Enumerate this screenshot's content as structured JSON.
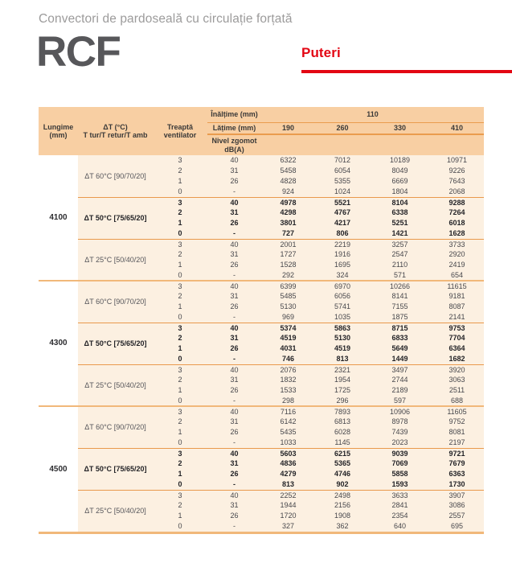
{
  "page": {
    "subtitle": "Convectori de pardoseală cu circulație forțată",
    "product": "RCF",
    "section": "Puteri"
  },
  "colors": {
    "accent_red": "#e30613",
    "table_header_bg": "#f8cfa3",
    "table_body_bg": "#fcf0e1",
    "thin_rule_orange": "#e9994c",
    "group_rule_orange": "#f1b87a",
    "product_gray": "#57575a",
    "subtitle_gray": "#9c9b9b"
  },
  "table": {
    "header": {
      "inaltime_label": "Înălțime (mm)",
      "inaltime_value": "110",
      "latime_label": "Lățime (mm)",
      "widths": [
        "190",
        "260",
        "330",
        "410"
      ],
      "lungime_line1": "Lungime",
      "lungime_line2": "(mm)",
      "dt_line1": "ΔT (°C)",
      "dt_line2": "T tur/T retur/T amb",
      "treapta_line1": "Treaptă",
      "treapta_line2": "ventilator",
      "nivel_line1": "Nivel zgomot",
      "nivel_line2": "dB(A)"
    },
    "groups": [
      {
        "length": "4100",
        "dt_blocks": [
          {
            "label": "ΔT 60°C [90/70/20]",
            "bold": false,
            "rows": [
              {
                "step": "3",
                "noise": "40",
                "values": [
                  "6322",
                  "7012",
                  "10189",
                  "10971"
                ]
              },
              {
                "step": "2",
                "noise": "31",
                "values": [
                  "5458",
                  "6054",
                  "8049",
                  "9226"
                ]
              },
              {
                "step": "1",
                "noise": "26",
                "values": [
                  "4828",
                  "5355",
                  "6669",
                  "7643"
                ]
              },
              {
                "step": "0",
                "noise": "-",
                "values": [
                  "924",
                  "1024",
                  "1804",
                  "2068"
                ]
              }
            ]
          },
          {
            "label": "ΔT 50°C [75/65/20]",
            "bold": true,
            "rows": [
              {
                "step": "3",
                "noise": "40",
                "values": [
                  "4978",
                  "5521",
                  "8104",
                  "9288"
                ]
              },
              {
                "step": "2",
                "noise": "31",
                "values": [
                  "4298",
                  "4767",
                  "6338",
                  "7264"
                ]
              },
              {
                "step": "1",
                "noise": "26",
                "values": [
                  "3801",
                  "4217",
                  "5251",
                  "6018"
                ]
              },
              {
                "step": "0",
                "noise": "-",
                "values": [
                  "727",
                  "806",
                  "1421",
                  "1628"
                ]
              }
            ]
          },
          {
            "label": "ΔT 25°C [50/40/20]",
            "bold": false,
            "rows": [
              {
                "step": "3",
                "noise": "40",
                "values": [
                  "2001",
                  "2219",
                  "3257",
                  "3733"
                ]
              },
              {
                "step": "2",
                "noise": "31",
                "values": [
                  "1727",
                  "1916",
                  "2547",
                  "2920"
                ]
              },
              {
                "step": "1",
                "noise": "26",
                "values": [
                  "1528",
                  "1695",
                  "2110",
                  "2419"
                ]
              },
              {
                "step": "0",
                "noise": "-",
                "values": [
                  "292",
                  "324",
                  "571",
                  "654"
                ]
              }
            ]
          }
        ]
      },
      {
        "length": "4300",
        "dt_blocks": [
          {
            "label": "ΔT 60°C [90/70/20]",
            "bold": false,
            "rows": [
              {
                "step": "3",
                "noise": "40",
                "values": [
                  "6399",
                  "6970",
                  "10266",
                  "11615"
                ]
              },
              {
                "step": "2",
                "noise": "31",
                "values": [
                  "5485",
                  "6056",
                  "8141",
                  "9181"
                ]
              },
              {
                "step": "1",
                "noise": "26",
                "values": [
                  "5130",
                  "5741",
                  "7155",
                  "8087"
                ]
              },
              {
                "step": "0",
                "noise": "-",
                "values": [
                  "969",
                  "1035",
                  "1875",
                  "2141"
                ]
              }
            ]
          },
          {
            "label": "ΔT 50°C [75/65/20]",
            "bold": true,
            "rows": [
              {
                "step": "3",
                "noise": "40",
                "values": [
                  "5374",
                  "5863",
                  "8715",
                  "9753"
                ]
              },
              {
                "step": "2",
                "noise": "31",
                "values": [
                  "4519",
                  "5130",
                  "6833",
                  "7704"
                ]
              },
              {
                "step": "1",
                "noise": "26",
                "values": [
                  "4031",
                  "4519",
                  "5649",
                  "6364"
                ]
              },
              {
                "step": "0",
                "noise": "-",
                "values": [
                  "746",
                  "813",
                  "1449",
                  "1682"
                ]
              }
            ]
          },
          {
            "label": "ΔT 25°C [50/40/20]",
            "bold": false,
            "rows": [
              {
                "step": "3",
                "noise": "40",
                "values": [
                  "2076",
                  "2321",
                  "3497",
                  "3920"
                ]
              },
              {
                "step": "2",
                "noise": "31",
                "values": [
                  "1832",
                  "1954",
                  "2744",
                  "3063"
                ]
              },
              {
                "step": "1",
                "noise": "26",
                "values": [
                  "1533",
                  "1725",
                  "2189",
                  "2511"
                ]
              },
              {
                "step": "0",
                "noise": "-",
                "values": [
                  "298",
                  "296",
                  "597",
                  "688"
                ]
              }
            ]
          }
        ]
      },
      {
        "length": "4500",
        "dt_blocks": [
          {
            "label": "ΔT 60°C [90/70/20]",
            "bold": false,
            "rows": [
              {
                "step": "3",
                "noise": "40",
                "values": [
                  "7116",
                  "7893",
                  "10906",
                  "11605"
                ]
              },
              {
                "step": "2",
                "noise": "31",
                "values": [
                  "6142",
                  "6813",
                  "8978",
                  "9752"
                ]
              },
              {
                "step": "1",
                "noise": "26",
                "values": [
                  "5435",
                  "6028",
                  "7439",
                  "8081"
                ]
              },
              {
                "step": "0",
                "noise": "-",
                "values": [
                  "1033",
                  "1145",
                  "2023",
                  "2197"
                ]
              }
            ]
          },
          {
            "label": "ΔT 50°C [75/65/20]",
            "bold": true,
            "rows": [
              {
                "step": "3",
                "noise": "40",
                "values": [
                  "5603",
                  "6215",
                  "9039",
                  "9721"
                ]
              },
              {
                "step": "2",
                "noise": "31",
                "values": [
                  "4836",
                  "5365",
                  "7069",
                  "7679"
                ]
              },
              {
                "step": "1",
                "noise": "26",
                "values": [
                  "4279",
                  "4746",
                  "5858",
                  "6363"
                ]
              },
              {
                "step": "0",
                "noise": "-",
                "values": [
                  "813",
                  "902",
                  "1593",
                  "1730"
                ]
              }
            ]
          },
          {
            "label": "ΔT 25°C [50/40/20]",
            "bold": false,
            "rows": [
              {
                "step": "3",
                "noise": "40",
                "values": [
                  "2252",
                  "2498",
                  "3633",
                  "3907"
                ]
              },
              {
                "step": "2",
                "noise": "31",
                "values": [
                  "1944",
                  "2156",
                  "2841",
                  "3086"
                ]
              },
              {
                "step": "1",
                "noise": "26",
                "values": [
                  "1720",
                  "1908",
                  "2354",
                  "2557"
                ]
              },
              {
                "step": "0",
                "noise": "-",
                "values": [
                  "327",
                  "362",
                  "640",
                  "695"
                ]
              }
            ]
          }
        ]
      }
    ]
  }
}
